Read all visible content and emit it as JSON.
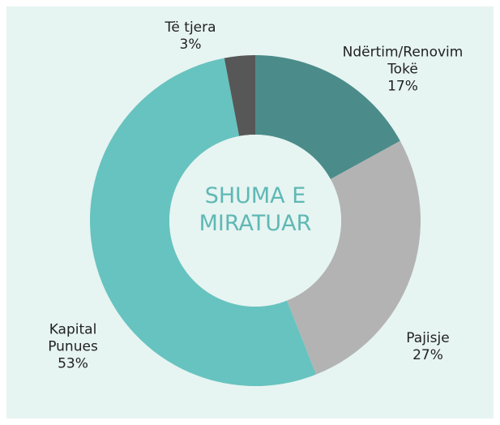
{
  "chart_data": {
    "type": "donut",
    "center_text": "SHUMA E MIRATUAR",
    "categories": [
      "Ndërtim/Renovim Tokë",
      "Pajisje",
      "Kapital Punues",
      "Të tjera"
    ],
    "values": [
      17,
      27,
      53,
      3
    ],
    "value_labels": [
      "17%",
      "27%",
      "53%",
      "3%"
    ],
    "colors": [
      "#4b8c8a",
      "#b3b3b3",
      "#67c3bf",
      "#575757"
    ]
  }
}
